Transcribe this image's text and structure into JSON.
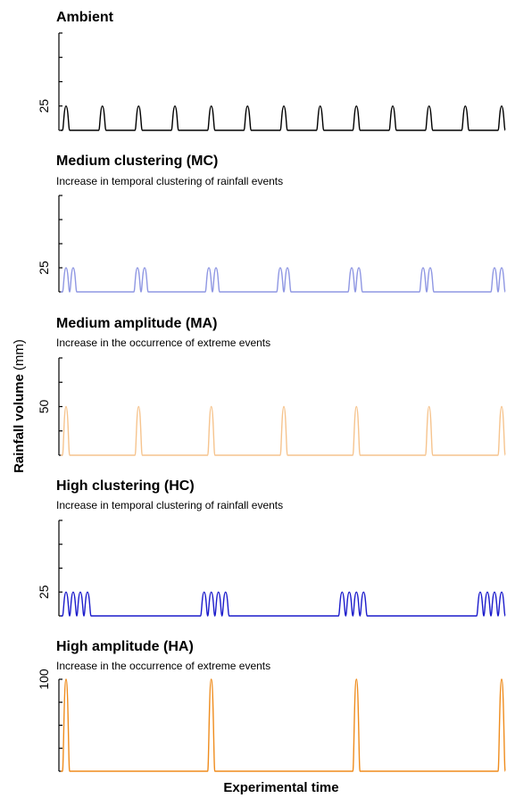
{
  "chart_data": {
    "type": "line",
    "ylabel": {
      "bold": "Rainfall volume",
      "normal": "(mm)"
    },
    "xlabel": "Experimental time",
    "panels": [
      {
        "id": "ambient",
        "title": "Ambient",
        "subtitle": "",
        "color": "#000000",
        "y_tick_label": "25",
        "y_tick_value": 25,
        "ylim": [
          0,
          100
        ],
        "pulses_per_event": 1,
        "event_peak_mm": 25,
        "event_count": 13
      },
      {
        "id": "medium-clustering",
        "title": "Medium clustering (MC)",
        "subtitle": "Increase in temporal clustering  of  rainfall events",
        "color": "#8f97e3",
        "y_tick_label": "25",
        "y_tick_value": 25,
        "ylim": [
          0,
          100
        ],
        "pulses_per_event": 2,
        "event_peak_mm": 25,
        "event_count": 7
      },
      {
        "id": "medium-amplitude",
        "title": "Medium amplitude (MA)",
        "subtitle": "Increase in the occurrence of extreme events",
        "color": "#f6c48e",
        "y_tick_label": "50",
        "y_tick_value": 50,
        "ylim": [
          0,
          100
        ],
        "pulses_per_event": 1,
        "event_peak_mm": 50,
        "event_count": 7
      },
      {
        "id": "high-clustering",
        "title": "High clustering (HC)",
        "subtitle": "Increase in temporal clustering  of  rainfall events",
        "color": "#1c1ccc",
        "y_tick_label": "25",
        "y_tick_value": 25,
        "ylim": [
          0,
          100
        ],
        "pulses_per_event": 4,
        "event_peak_mm": 25,
        "event_count": 4
      },
      {
        "id": "high-amplitude",
        "title": "High amplitude (HA)",
        "subtitle": "Increase in the occurrence of extreme events",
        "color": "#ef8c1d",
        "y_tick_label": "100",
        "y_tick_value": 100,
        "ylim": [
          0,
          100
        ],
        "pulses_per_event": 1,
        "event_peak_mm": 100,
        "event_count": 4
      }
    ]
  }
}
